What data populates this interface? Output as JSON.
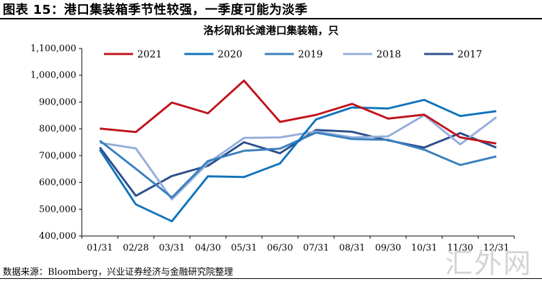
{
  "figure": {
    "title": "图表 15：港口集装箱季节性较强，一季度可能为淡季",
    "source": "数据来源：Bloomberg，兴业证券经济与金融研究院整理",
    "watermark": "汇外网"
  },
  "chart_data": {
    "type": "line",
    "title": "洛杉矶和长滩港口集装箱，只",
    "categories": [
      "01/31",
      "02/28",
      "03/31",
      "04/30",
      "05/31",
      "06/30",
      "07/31",
      "08/31",
      "09/30",
      "10/31",
      "11/30",
      "12/31"
    ],
    "ylim": [
      400000,
      1100000
    ],
    "yticks": [
      400000,
      500000,
      600000,
      700000,
      800000,
      900000,
      1000000,
      1100000
    ],
    "ytick_labels": [
      "400,000",
      "500,000",
      "600,000",
      "700,000",
      "800,000",
      "900,000",
      "1,000,000",
      "1,100,000"
    ],
    "grid": false,
    "legend_position": "top",
    "series": [
      {
        "name": "2021",
        "color": "#C0141C",
        "values": [
          801000,
          788000,
          898000,
          858000,
          980000,
          826000,
          852000,
          893000,
          838000,
          853000,
          768000,
          745000
        ]
      },
      {
        "name": "2020",
        "color": "#1273BB",
        "values": [
          722000,
          518000,
          455000,
          623000,
          620000,
          671000,
          835000,
          880000,
          876000,
          908000,
          848000,
          866000
        ]
      },
      {
        "name": "2019",
        "color": "#3A7FBF",
        "values": [
          756000,
          651000,
          544000,
          680000,
          718000,
          726000,
          786000,
          762000,
          759000,
          722000,
          665000,
          697000
        ]
      },
      {
        "name": "2018",
        "color": "#94AEDB",
        "values": [
          748000,
          727000,
          537000,
          672000,
          766000,
          768000,
          790000,
          768000,
          772000,
          851000,
          742000,
          843000
        ]
      },
      {
        "name": "2017",
        "color": "#2B4F8C",
        "values": [
          731000,
          550000,
          624000,
          662000,
          750000,
          709000,
          796000,
          789000,
          757000,
          730000,
          784000,
          730000
        ]
      }
    ]
  }
}
